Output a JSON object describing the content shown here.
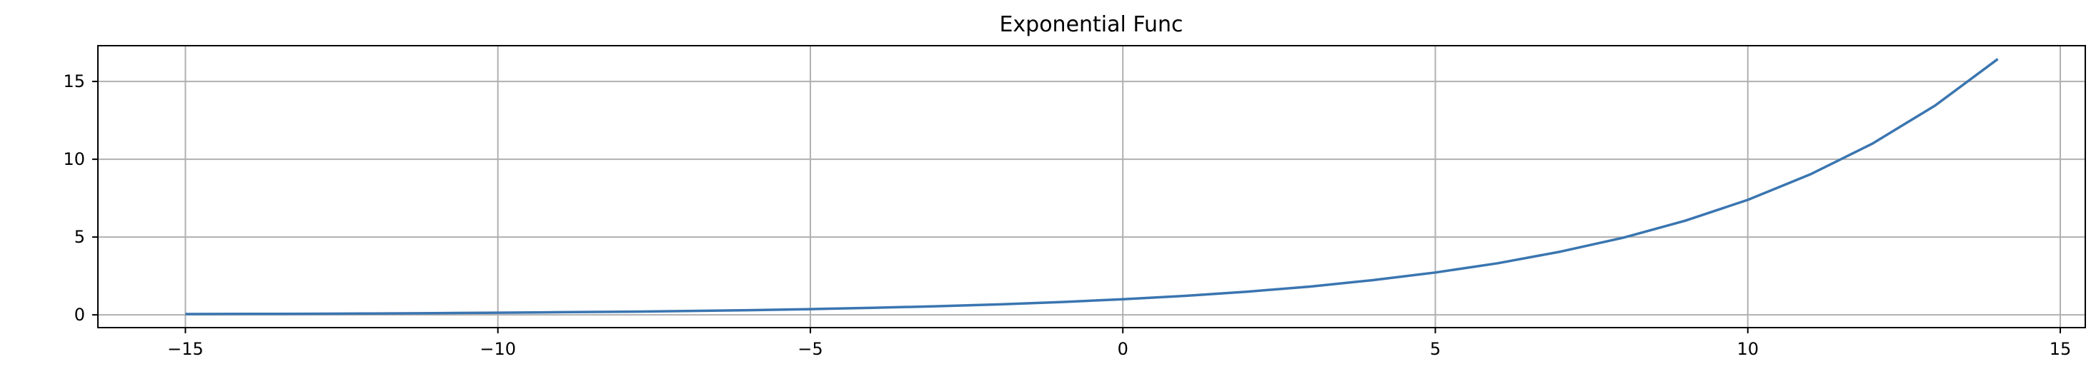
{
  "chart_data": {
    "type": "line",
    "title": "Exponential Func",
    "xlabel": "",
    "ylabel": "",
    "xlim": [
      -16.4,
      15.4
    ],
    "ylim": [
      -0.82,
      17.3
    ],
    "xticks": [
      -15,
      -10,
      -5,
      0,
      5,
      10,
      15
    ],
    "xtick_labels": [
      "−15",
      "−10",
      "−5",
      "0",
      "5",
      "10",
      "15"
    ],
    "yticks": [
      0,
      5,
      10,
      15
    ],
    "ytick_labels": [
      "0",
      "5",
      "10",
      "15"
    ],
    "grid": true,
    "line_color": "#3a75b0",
    "series": [
      {
        "x": [
          -15,
          -14,
          -13,
          -12,
          -11,
          -10,
          -9,
          -8,
          -7,
          -6,
          -5,
          -4,
          -3,
          -2,
          -1,
          0,
          1,
          2,
          3,
          4,
          5,
          6,
          7,
          8,
          9,
          10,
          11,
          12,
          13,
          14
        ],
        "values": [
          0.05,
          0.06,
          0.07,
          0.09,
          0.11,
          0.14,
          0.17,
          0.2,
          0.25,
          0.3,
          0.37,
          0.45,
          0.55,
          0.67,
          0.82,
          1.0,
          1.22,
          1.49,
          1.82,
          2.23,
          2.72,
          3.32,
          4.06,
          4.95,
          6.05,
          7.39,
          9.03,
          11.02,
          13.46,
          16.44
        ]
      }
    ]
  }
}
